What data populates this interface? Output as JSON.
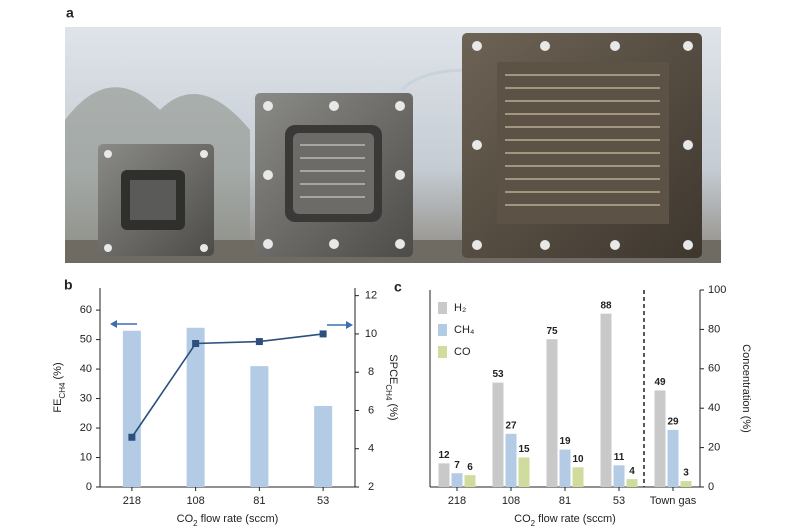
{
  "photo": {
    "label": "a"
  },
  "chart_data": [
    {
      "type": "bar",
      "panel_label": "b",
      "categories": [
        "218",
        "108",
        "81",
        "53"
      ],
      "xlabel": {
        "text": "CO",
        "sub": "2",
        "rest": " flow rate (sccm)"
      },
      "ylabel": {
        "text": "FE",
        "sub": "CH4",
        "rest": " (%)"
      },
      "y2label": {
        "text": "SPCE",
        "sub": "CH4",
        "rest": " (%)"
      },
      "ylim": [
        0,
        67.5
      ],
      "yticks": [
        0,
        10,
        20,
        30,
        40,
        50,
        60
      ],
      "y2lim": [
        2,
        12.4
      ],
      "y2ticks": [
        2,
        4,
        6,
        8,
        10,
        12
      ],
      "series": [
        {
          "type": "bar",
          "color": "#b3cbe4",
          "values": [
            53,
            54,
            41,
            27.5
          ]
        },
        {
          "type": "line",
          "axis": "y2",
          "color": "#2d4f7c",
          "values": [
            4.6,
            9.5,
            9.6,
            10.0
          ]
        }
      ]
    },
    {
      "type": "grouped-bar",
      "panel_label": "c",
      "categories": [
        "218",
        "108",
        "81",
        "53",
        "Town gas"
      ],
      "xlabel": {
        "text": "CO",
        "sub": "2",
        "rest": " flow rate (sccm)"
      },
      "ylabel": {
        "text": "Concentration (%)",
        "sub": "",
        "rest": ""
      },
      "ylim": [
        0,
        100
      ],
      "yticks": [
        0,
        20,
        40,
        60,
        80,
        100
      ],
      "series": [
        {
          "name": "H₂",
          "color": "#c9c9c9",
          "values": [
            12,
            53,
            75,
            88,
            49
          ]
        },
        {
          "name": "CH₄",
          "color": "#b3cbe4",
          "values": [
            7,
            27,
            19,
            11,
            29
          ]
        },
        {
          "name": "CO",
          "color": "#cfdc9e",
          "values": [
            6,
            15,
            10,
            4,
            3
          ]
        }
      ]
    }
  ]
}
